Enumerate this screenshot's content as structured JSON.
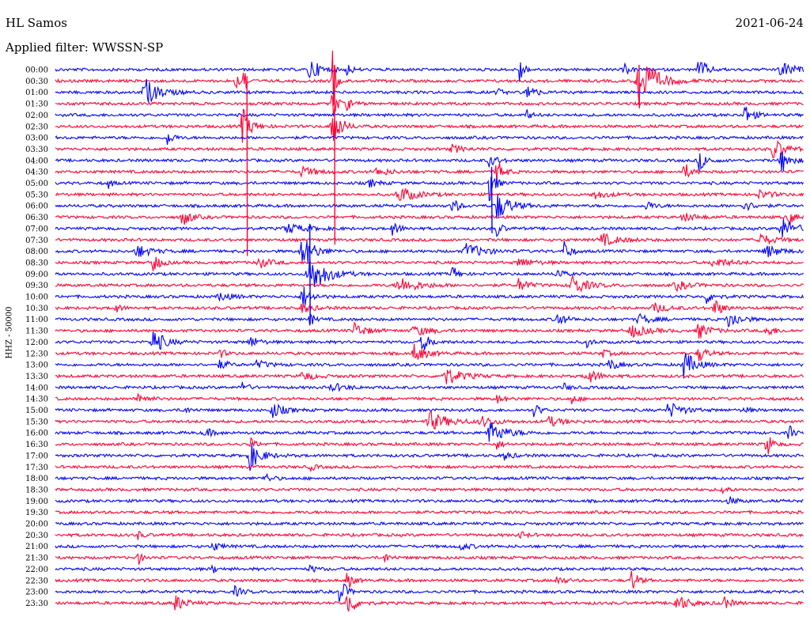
{
  "header": {
    "station": "HL Samos",
    "date": "2021-06-24",
    "filter": "Applied filter: WWSSN-SP"
  },
  "side_label": "HHZ - 50000",
  "chart_data": {
    "type": "line",
    "title": "HL Samos",
    "subtitle": "Applied filter: WWSSN-SP",
    "ylabel": "HHZ - 50000",
    "grid": false,
    "trace_colors": [
      "#0000ff",
      "#ff0033"
    ],
    "rows": [
      {
        "time": "00:00",
        "events": [
          {
            "x": 0.34,
            "a": 14,
            "w": 0.008
          },
          {
            "x": 0.39,
            "a": 10,
            "w": 0.003
          },
          {
            "x": 0.62,
            "a": 22,
            "w": 0.003
          },
          {
            "x": 0.76,
            "a": 8,
            "w": 0.004
          },
          {
            "x": 0.86,
            "a": 18,
            "w": 0.005
          },
          {
            "x": 0.97,
            "a": 10,
            "w": 0.01
          }
        ]
      },
      {
        "time": "00:30",
        "events": [
          {
            "x": 0.24,
            "a": 10,
            "w": 0.004
          },
          {
            "x": 0.25,
            "a": 46,
            "w": 0.002
          },
          {
            "x": 0.37,
            "a": 60,
            "w": 0.002
          },
          {
            "x": 0.78,
            "a": 36,
            "w": 0.012
          }
        ]
      },
      {
        "time": "01:00",
        "events": [
          {
            "x": 0.12,
            "a": 18,
            "w": 0.01
          },
          {
            "x": 0.59,
            "a": 5,
            "w": 0.004
          },
          {
            "x": 0.63,
            "a": 14,
            "w": 0.005
          }
        ]
      },
      {
        "time": "01:30",
        "events": [
          {
            "x": 0.37,
            "a": 30,
            "w": 0.003
          },
          {
            "x": 0.39,
            "a": 8,
            "w": 0.004
          }
        ]
      },
      {
        "time": "02:00",
        "events": [
          {
            "x": 0.63,
            "a": 8,
            "w": 0.003
          },
          {
            "x": 0.92,
            "a": 14,
            "w": 0.006
          }
        ]
      },
      {
        "time": "02:30",
        "events": [
          {
            "x": 0.25,
            "a": 24,
            "w": 0.006
          },
          {
            "x": 0.37,
            "a": 30,
            "w": 0.006
          }
        ]
      },
      {
        "time": "03:00",
        "events": [
          {
            "x": 0.15,
            "a": 10,
            "w": 0.004
          }
        ]
      },
      {
        "time": "03:30",
        "events": [
          {
            "x": 0.53,
            "a": 5,
            "w": 0.008
          },
          {
            "x": 0.96,
            "a": 14,
            "w": 0.008
          }
        ]
      },
      {
        "time": "04:00",
        "events": [
          {
            "x": 0.58,
            "a": 8,
            "w": 0.006
          },
          {
            "x": 0.86,
            "a": 12,
            "w": 0.006
          },
          {
            "x": 0.97,
            "a": 16,
            "w": 0.006
          }
        ]
      },
      {
        "time": "04:30",
        "events": [
          {
            "x": 0.33,
            "a": 6,
            "w": 0.01
          },
          {
            "x": 0.43,
            "a": 5,
            "w": 0.01
          },
          {
            "x": 0.59,
            "a": 16,
            "w": 0.005
          },
          {
            "x": 0.84,
            "a": 14,
            "w": 0.004
          }
        ]
      },
      {
        "time": "05:00",
        "events": [
          {
            "x": 0.07,
            "a": 8,
            "w": 0.003
          },
          {
            "x": 0.42,
            "a": 5,
            "w": 0.006
          },
          {
            "x": 0.58,
            "a": 24,
            "w": 0.004
          }
        ]
      },
      {
        "time": "05:30",
        "events": [
          {
            "x": 0.46,
            "a": 10,
            "w": 0.012
          },
          {
            "x": 0.72,
            "a": 5,
            "w": 0.01
          },
          {
            "x": 0.94,
            "a": 5,
            "w": 0.01
          }
        ]
      },
      {
        "time": "06:00",
        "events": [
          {
            "x": 0.53,
            "a": 14,
            "w": 0.004
          },
          {
            "x": 0.59,
            "a": 18,
            "w": 0.01
          },
          {
            "x": 0.79,
            "a": 6,
            "w": 0.006
          },
          {
            "x": 0.92,
            "a": 6,
            "w": 0.008
          }
        ]
      },
      {
        "time": "06:30",
        "events": [
          {
            "x": 0.17,
            "a": 12,
            "w": 0.006
          },
          {
            "x": 0.84,
            "a": 5,
            "w": 0.01
          },
          {
            "x": 0.98,
            "a": 12,
            "w": 0.004
          }
        ]
      },
      {
        "time": "07:00",
        "events": [
          {
            "x": 0.31,
            "a": 6,
            "w": 0.014
          },
          {
            "x": 0.45,
            "a": 8,
            "w": 0.006
          },
          {
            "x": 0.59,
            "a": 10,
            "w": 0.004
          },
          {
            "x": 0.97,
            "a": 14,
            "w": 0.01
          }
        ]
      },
      {
        "time": "07:30",
        "events": [
          {
            "x": 0.73,
            "a": 8,
            "w": 0.012
          },
          {
            "x": 0.94,
            "a": 8,
            "w": 0.01
          }
        ]
      },
      {
        "time": "08:00",
        "events": [
          {
            "x": 0.11,
            "a": 8,
            "w": 0.01
          },
          {
            "x": 0.33,
            "a": 24,
            "w": 0.008
          },
          {
            "x": 0.55,
            "a": 10,
            "w": 0.012
          },
          {
            "x": 0.68,
            "a": 16,
            "w": 0.004
          },
          {
            "x": 0.95,
            "a": 8,
            "w": 0.01
          }
        ]
      },
      {
        "time": "08:30",
        "events": [
          {
            "x": 0.13,
            "a": 14,
            "w": 0.005
          },
          {
            "x": 0.27,
            "a": 8,
            "w": 0.008
          },
          {
            "x": 0.62,
            "a": 6,
            "w": 0.01
          },
          {
            "x": 0.88,
            "a": 6,
            "w": 0.012
          }
        ]
      },
      {
        "time": "09:00",
        "events": [
          {
            "x": 0.34,
            "a": 26,
            "w": 0.012
          },
          {
            "x": 0.53,
            "a": 12,
            "w": 0.004
          },
          {
            "x": 0.67,
            "a": 10,
            "w": 0.004
          }
        ]
      },
      {
        "time": "09:30",
        "events": [
          {
            "x": 0.46,
            "a": 10,
            "w": 0.014
          },
          {
            "x": 0.62,
            "a": 10,
            "w": 0.006
          },
          {
            "x": 0.69,
            "a": 14,
            "w": 0.01
          },
          {
            "x": 0.83,
            "a": 6,
            "w": 0.01
          }
        ]
      },
      {
        "time": "10:00",
        "events": [
          {
            "x": 0.22,
            "a": 6,
            "w": 0.008
          },
          {
            "x": 0.33,
            "a": 16,
            "w": 0.006
          },
          {
            "x": 0.87,
            "a": 8,
            "w": 0.006
          }
        ]
      },
      {
        "time": "10:30",
        "events": [
          {
            "x": 0.08,
            "a": 6,
            "w": 0.004
          },
          {
            "x": 0.33,
            "a": 6,
            "w": 0.008
          },
          {
            "x": 0.8,
            "a": 6,
            "w": 0.01
          },
          {
            "x": 0.88,
            "a": 12,
            "w": 0.006
          }
        ]
      },
      {
        "time": "11:00",
        "events": [
          {
            "x": 0.34,
            "a": 10,
            "w": 0.003
          },
          {
            "x": 0.67,
            "a": 10,
            "w": 0.006
          },
          {
            "x": 0.78,
            "a": 6,
            "w": 0.01
          },
          {
            "x": 0.9,
            "a": 12,
            "w": 0.008
          }
        ]
      },
      {
        "time": "11:30",
        "events": [
          {
            "x": 0.4,
            "a": 10,
            "w": 0.008
          },
          {
            "x": 0.48,
            "a": 6,
            "w": 0.012
          },
          {
            "x": 0.77,
            "a": 8,
            "w": 0.012
          },
          {
            "x": 0.86,
            "a": 10,
            "w": 0.008
          },
          {
            "x": 0.95,
            "a": 8,
            "w": 0.006
          }
        ]
      },
      {
        "time": "12:00",
        "events": [
          {
            "x": 0.13,
            "a": 18,
            "w": 0.008
          },
          {
            "x": 0.26,
            "a": 8,
            "w": 0.006
          },
          {
            "x": 0.49,
            "a": 12,
            "w": 0.006
          },
          {
            "x": 0.71,
            "a": 6,
            "w": 0.004
          }
        ]
      },
      {
        "time": "12:30",
        "events": [
          {
            "x": 0.22,
            "a": 6,
            "w": 0.004
          },
          {
            "x": 0.48,
            "a": 12,
            "w": 0.008
          },
          {
            "x": 0.73,
            "a": 5,
            "w": 0.006
          },
          {
            "x": 0.86,
            "a": 10,
            "w": 0.006
          }
        ]
      },
      {
        "time": "13:00",
        "events": [
          {
            "x": 0.22,
            "a": 6,
            "w": 0.006
          },
          {
            "x": 0.27,
            "a": 5,
            "w": 0.008
          },
          {
            "x": 0.74,
            "a": 8,
            "w": 0.006
          },
          {
            "x": 0.84,
            "a": 18,
            "w": 0.008
          }
        ]
      },
      {
        "time": "13:30",
        "events": [
          {
            "x": 0.33,
            "a": 5,
            "w": 0.01
          },
          {
            "x": 0.52,
            "a": 12,
            "w": 0.012
          },
          {
            "x": 0.71,
            "a": 10,
            "w": 0.008
          }
        ]
      },
      {
        "time": "14:00",
        "events": [
          {
            "x": 0.25,
            "a": 12,
            "w": 0.003
          },
          {
            "x": 0.37,
            "a": 5,
            "w": 0.01
          },
          {
            "x": 0.68,
            "a": 5,
            "w": 0.004
          }
        ]
      },
      {
        "time": "14:30",
        "events": [
          {
            "x": 0.11,
            "a": 8,
            "w": 0.006
          },
          {
            "x": 0.59,
            "a": 5,
            "w": 0.006
          },
          {
            "x": 0.69,
            "a": 6,
            "w": 0.004
          }
        ]
      },
      {
        "time": "15:00",
        "events": [
          {
            "x": 0.17,
            "a": 6,
            "w": 0.004
          },
          {
            "x": 0.29,
            "a": 10,
            "w": 0.008
          },
          {
            "x": 0.64,
            "a": 10,
            "w": 0.004
          },
          {
            "x": 0.82,
            "a": 10,
            "w": 0.01
          },
          {
            "x": 0.92,
            "a": 5,
            "w": 0.004
          }
        ]
      },
      {
        "time": "15:30",
        "events": [
          {
            "x": 0.5,
            "a": 12,
            "w": 0.014
          },
          {
            "x": 0.57,
            "a": 6,
            "w": 0.01
          },
          {
            "x": 0.66,
            "a": 6,
            "w": 0.01
          }
        ]
      },
      {
        "time": "16:00",
        "events": [
          {
            "x": 0.2,
            "a": 6,
            "w": 0.006
          },
          {
            "x": 0.58,
            "a": 14,
            "w": 0.012
          },
          {
            "x": 0.98,
            "a": 12,
            "w": 0.003
          }
        ]
      },
      {
        "time": "16:30",
        "events": [
          {
            "x": 0.26,
            "a": 8,
            "w": 0.004
          },
          {
            "x": 0.59,
            "a": 6,
            "w": 0.004
          },
          {
            "x": 0.95,
            "a": 18,
            "w": 0.004
          }
        ]
      },
      {
        "time": "17:00",
        "events": [
          {
            "x": 0.26,
            "a": 18,
            "w": 0.008
          },
          {
            "x": 0.6,
            "a": 5,
            "w": 0.006
          }
        ]
      },
      {
        "time": "17:30",
        "events": [
          {
            "x": 0.34,
            "a": 5,
            "w": 0.004
          }
        ]
      },
      {
        "time": "18:00",
        "events": [
          {
            "x": 0.28,
            "a": 6,
            "w": 0.005
          }
        ]
      },
      {
        "time": "18:30",
        "events": [
          {
            "x": 0.89,
            "a": 10,
            "w": 0.003
          }
        ]
      },
      {
        "time": "19:00",
        "events": [
          {
            "x": 0.9,
            "a": 5,
            "w": 0.006
          }
        ]
      },
      {
        "time": "19:30",
        "events": []
      },
      {
        "time": "20:00",
        "events": []
      },
      {
        "time": "20:30",
        "events": [
          {
            "x": 0.11,
            "a": 5,
            "w": 0.004
          },
          {
            "x": 0.62,
            "a": 4,
            "w": 0.006
          }
        ]
      },
      {
        "time": "21:00",
        "events": [
          {
            "x": 0.21,
            "a": 6,
            "w": 0.006
          },
          {
            "x": 0.54,
            "a": 4,
            "w": 0.008
          }
        ]
      },
      {
        "time": "21:30",
        "events": [
          {
            "x": 0.11,
            "a": 10,
            "w": 0.003
          },
          {
            "x": 0.44,
            "a": 6,
            "w": 0.004
          }
        ]
      },
      {
        "time": "22:00",
        "events": [
          {
            "x": 0.21,
            "a": 6,
            "w": 0.003
          },
          {
            "x": 0.34,
            "a": 4,
            "w": 0.006
          }
        ]
      },
      {
        "time": "22:30",
        "events": [
          {
            "x": 0.39,
            "a": 12,
            "w": 0.004
          },
          {
            "x": 0.67,
            "a": 5,
            "w": 0.006
          },
          {
            "x": 0.77,
            "a": 16,
            "w": 0.004
          }
        ]
      },
      {
        "time": "23:00",
        "events": [
          {
            "x": 0.24,
            "a": 6,
            "w": 0.006
          },
          {
            "x": 0.38,
            "a": 22,
            "w": 0.004
          }
        ]
      },
      {
        "time": "23:30",
        "events": [
          {
            "x": 0.16,
            "a": 10,
            "w": 0.008
          },
          {
            "x": 0.39,
            "a": 18,
            "w": 0.006
          },
          {
            "x": 0.83,
            "a": 10,
            "w": 0.01
          },
          {
            "x": 0.89,
            "a": 10,
            "w": 0.006
          }
        ]
      }
    ],
    "spikes": [
      {
        "x": 0.256,
        "from_row": 1,
        "to_row": 16,
        "color": "#ff0033"
      },
      {
        "x": 0.373,
        "from_row": 0,
        "to_row": 15,
        "color": "#ff0033"
      },
      {
        "x": 0.34,
        "from_row": 14,
        "to_row": 22,
        "color": "#0000ff"
      },
      {
        "x": 0.583,
        "from_row": 9,
        "to_row": 14,
        "color": "#0000ff"
      },
      {
        "x": 0.78,
        "from_row": 0,
        "to_row": 3,
        "color": "#ff0033"
      }
    ]
  }
}
